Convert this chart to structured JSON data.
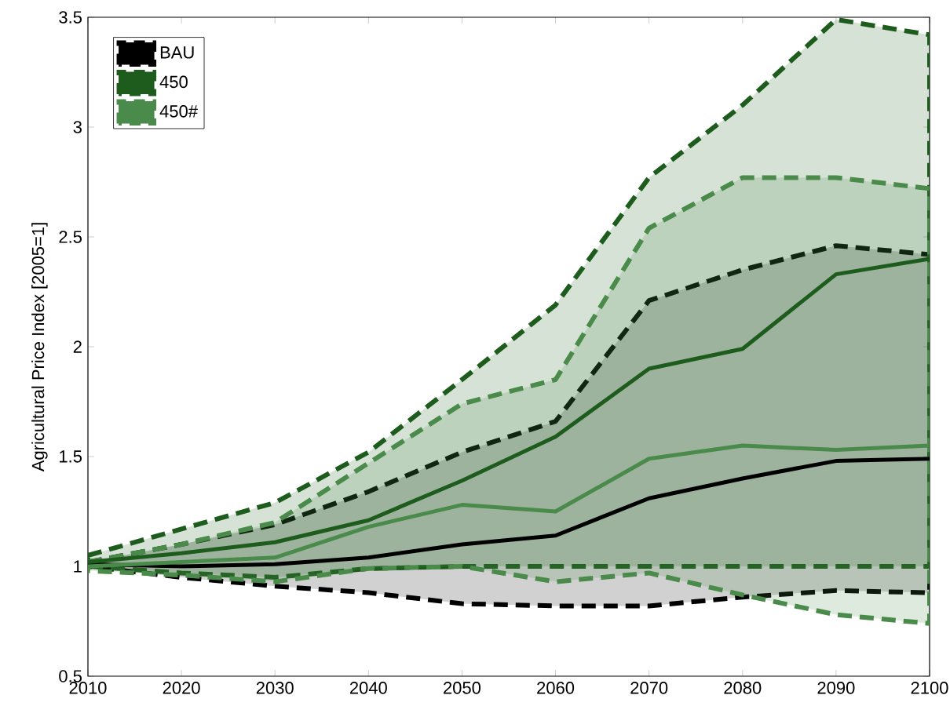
{
  "chart_data": {
    "type": "line",
    "ylabel": "Agricultural Price Index [2005=1]",
    "x": [
      2010,
      2020,
      2030,
      2040,
      2050,
      2060,
      2070,
      2080,
      2090,
      2100
    ],
    "xlim": [
      2010,
      2100
    ],
    "xticks": [
      2010,
      2020,
      2030,
      2040,
      2050,
      2060,
      2070,
      2080,
      2090,
      2100
    ],
    "ylim": [
      0.5,
      3.5
    ],
    "yticks": [
      0.5,
      1,
      1.5,
      2,
      2.5,
      3,
      3.5
    ],
    "legend": "top left",
    "grid": false,
    "line_style": "solid",
    "marker": "none",
    "series": [
      {
        "name": "BAU",
        "color": "#000000",
        "values": [
          1.01,
          1.0,
          1.01,
          1.04,
          1.1,
          1.14,
          1.31,
          1.4,
          1.48,
          1.49
        ],
        "upper": [
          1.02,
          1.1,
          1.19,
          1.34,
          1.52,
          1.66,
          2.21,
          2.35,
          2.46,
          2.42
        ],
        "lower": [
          1.0,
          0.95,
          0.91,
          0.88,
          0.83,
          0.82,
          0.82,
          0.86,
          0.89,
          0.88
        ]
      },
      {
        "name": "450",
        "color": "#1e5c1e",
        "values": [
          1.02,
          1.06,
          1.11,
          1.21,
          1.39,
          1.59,
          1.9,
          1.99,
          2.33,
          2.4
        ],
        "upper": [
          1.05,
          1.17,
          1.29,
          1.52,
          1.85,
          2.19,
          2.77,
          3.1,
          3.49,
          3.42
        ],
        "lower": [
          1.0,
          0.97,
          0.95,
          0.99,
          1.0,
          1.0,
          1.0,
          1.0,
          1.0,
          1.0
        ]
      },
      {
        "name": "450#",
        "color": "#4a8a4a",
        "values": [
          1.0,
          1.02,
          1.04,
          1.18,
          1.28,
          1.25,
          1.49,
          1.55,
          1.53,
          1.55
        ],
        "upper": [
          1.02,
          1.1,
          1.2,
          1.47,
          1.74,
          1.85,
          2.54,
          2.77,
          2.77,
          2.72
        ],
        "lower": [
          0.98,
          0.96,
          0.93,
          0.99,
          1.0,
          0.93,
          0.97,
          0.87,
          0.78,
          0.74
        ]
      }
    ]
  }
}
